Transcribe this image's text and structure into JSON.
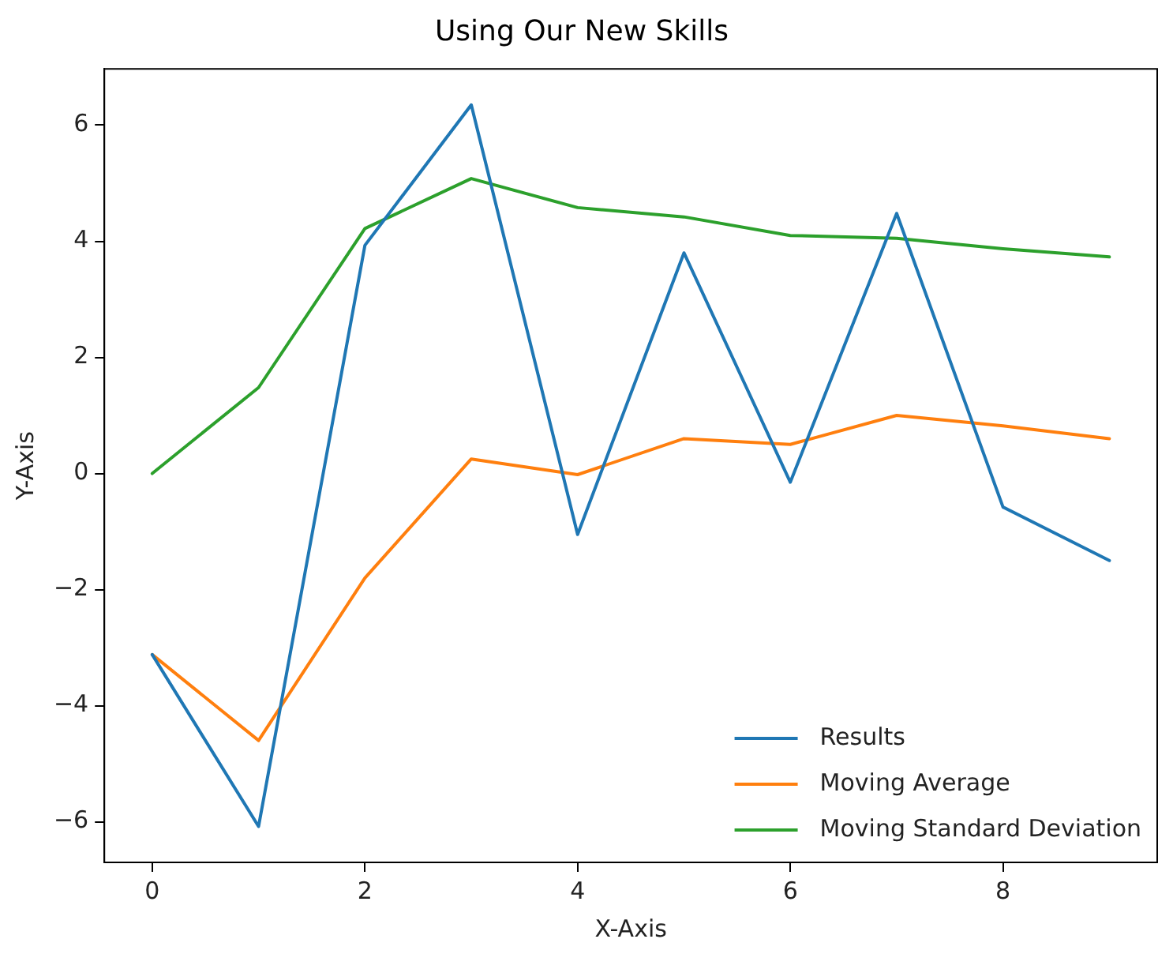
{
  "chart_data": {
    "type": "line",
    "title": "Using Our New Skills",
    "xlabel": "X-Axis",
    "ylabel": "Y-Axis",
    "x": [
      0,
      1,
      2,
      3,
      4,
      5,
      6,
      7,
      8,
      9
    ],
    "series": [
      {
        "name": "Results",
        "color": "#1f77b4",
        "values": [
          -3.12,
          -6.08,
          3.93,
          6.35,
          -1.05,
          3.8,
          -0.15,
          4.48,
          -0.58,
          -1.5
        ]
      },
      {
        "name": "Moving Average",
        "color": "#ff7f0e",
        "values": [
          -3.12,
          -4.6,
          -1.8,
          0.25,
          -0.02,
          0.6,
          0.5,
          1.0,
          0.82,
          0.6
        ]
      },
      {
        "name": "Moving Standard Deviation",
        "color": "#2ca02c",
        "values": [
          0,
          1.48,
          4.22,
          5.08,
          4.58,
          4.42,
          4.1,
          4.05,
          3.87,
          3.73
        ]
      }
    ],
    "xlim": [
      -0.45,
      9.45
    ],
    "ylim": [
      -6.7,
      6.97
    ],
    "xticks": [
      0,
      2,
      4,
      6,
      8
    ],
    "yticks": [
      -6,
      -4,
      -2,
      0,
      2,
      4,
      6
    ],
    "grid": false,
    "legend": "bottom right",
    "marker": "none",
    "line_style": "solid"
  }
}
